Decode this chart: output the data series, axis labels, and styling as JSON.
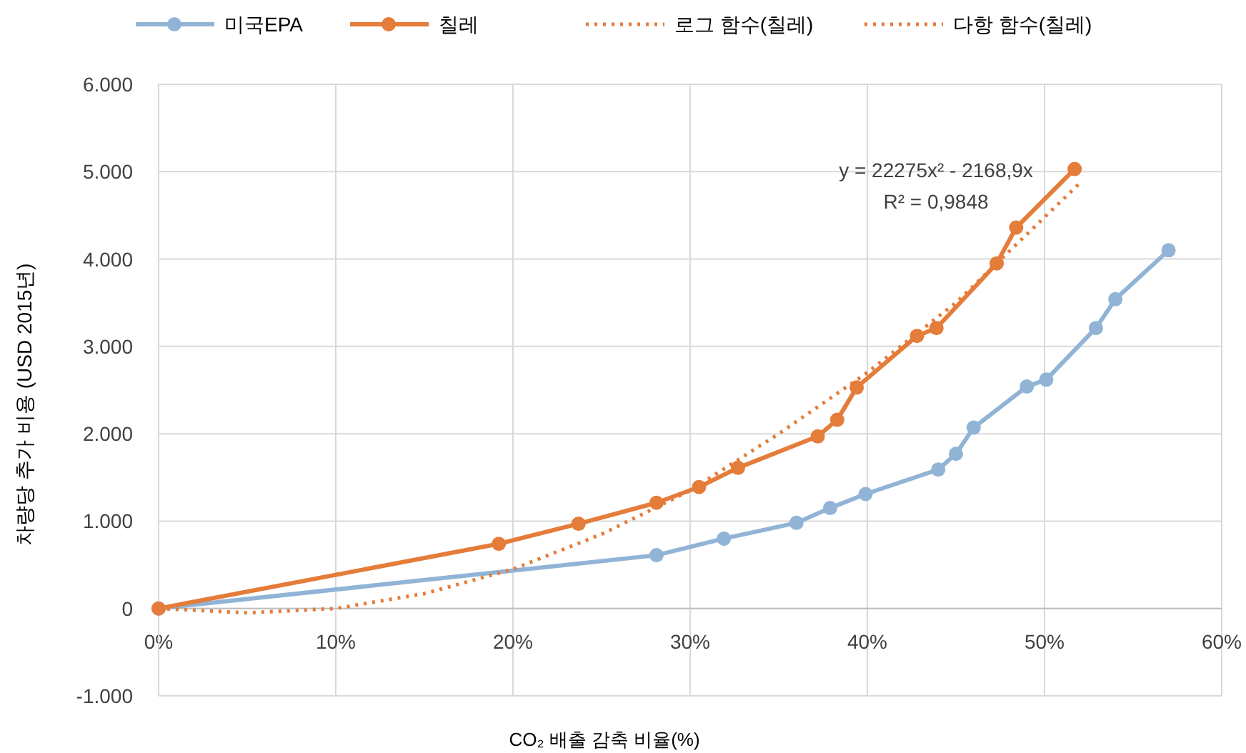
{
  "chart_data": {
    "type": "line",
    "xlabel": "CO₂ 배출 감축 비율(%)",
    "ylabel": "차량당 추가 비용 (USD 2015년)",
    "xlim": [
      0,
      60
    ],
    "xticks": [
      {
        "value": 0,
        "label": "0%"
      },
      {
        "value": 10,
        "label": "10%"
      },
      {
        "value": 20,
        "label": "20%"
      },
      {
        "value": 30,
        "label": "30%"
      },
      {
        "value": 40,
        "label": "40%"
      },
      {
        "value": 50,
        "label": "50%"
      },
      {
        "value": 60,
        "label": "60%"
      }
    ],
    "ylim": [
      -1000,
      6000
    ],
    "yticks": [
      {
        "value": -1000,
        "label": "-1.000"
      },
      0,
      {
        "value": 1000,
        "label": "1.000"
      },
      {
        "value": 2000,
        "label": "2.000"
      },
      {
        "value": 3000,
        "label": "3.000"
      },
      {
        "value": 4000,
        "label": "4.000"
      },
      {
        "value": 5000,
        "label": "5.000"
      },
      {
        "value": 6000,
        "label": "6.000"
      }
    ],
    "grid": true,
    "legend": "top",
    "marker": "circle",
    "series": [
      {
        "name": "미국EPA",
        "color": "#91b4d6",
        "x": [
          0,
          28.1,
          31.9,
          36.0,
          37.9,
          39.9,
          44.0,
          45.0,
          46.0,
          49.0,
          50.1,
          52.9,
          54.0,
          57.0
        ],
        "values": [
          0,
          610,
          800,
          980,
          1150,
          1310,
          1590,
          1770,
          2070,
          2540,
          2620,
          3210,
          3540,
          4100
        ]
      },
      {
        "name": "칠레",
        "color": "#e47c3a",
        "x": [
          0,
          19.2,
          23.7,
          28.1,
          30.5,
          32.7,
          37.2,
          38.3,
          39.4,
          42.8,
          43.9,
          47.3,
          48.4,
          51.7
        ],
        "values": [
          0,
          740,
          970,
          1210,
          1390,
          1610,
          1970,
          2160,
          2530,
          3120,
          3210,
          3950,
          4360,
          5030
        ]
      },
      {
        "name": "로그 함수(칠레)",
        "color": "#e47c3a",
        "type": "line",
        "line_style": "dotted",
        "marker": "none"
      },
      {
        "name": "다항 함수(칠레)",
        "color": "#e47c3a",
        "type": "line",
        "line_style": "dotted",
        "marker": "none",
        "x": [
          0,
          5,
          10,
          15,
          20,
          25,
          30,
          35,
          40,
          45,
          52
        ],
        "values": [
          0,
          -50,
          0,
          170,
          450,
          850,
          1350,
          2000,
          2700,
          3500,
          4870
        ]
      }
    ],
    "annotations": [
      "y = 22275x² - 2168,9x",
      "R² = 0,9848"
    ]
  }
}
